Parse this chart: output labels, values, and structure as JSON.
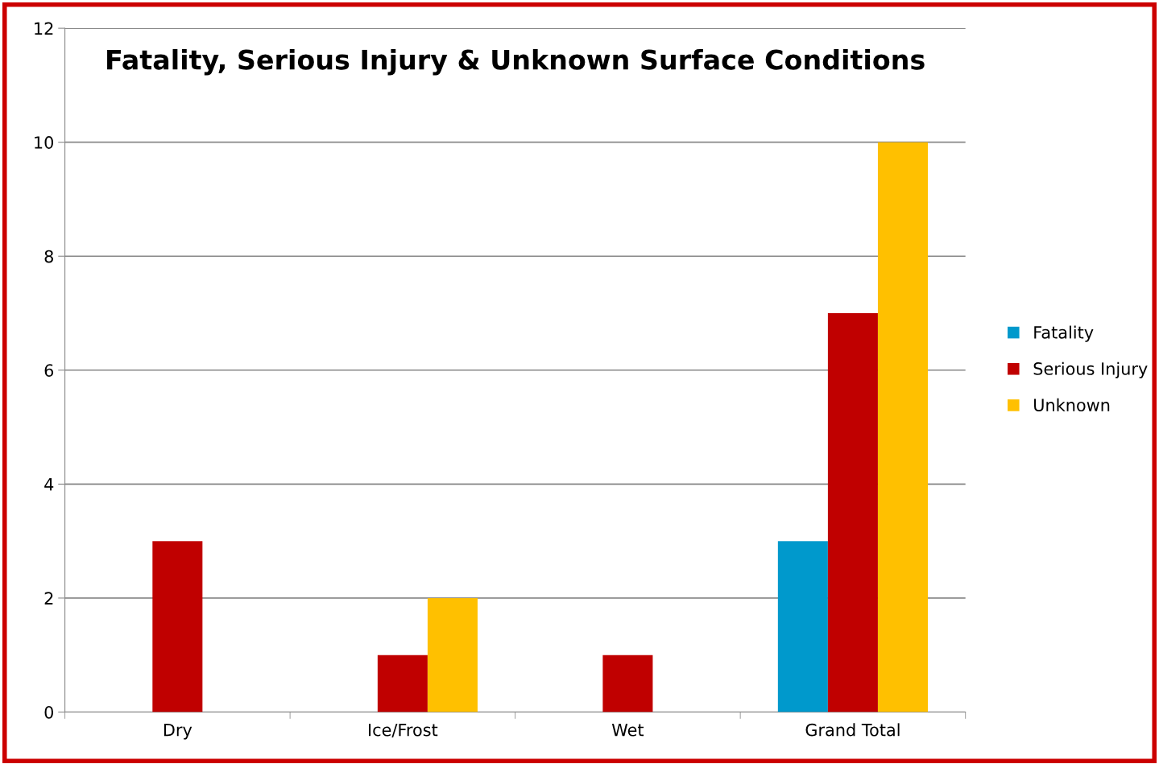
{
  "chart_data": {
    "type": "bar",
    "title": "Fatality, Serious Injury & Unknown Surface Conditions",
    "categories": [
      "Dry",
      "Ice/Frost",
      "Wet",
      "Grand Total"
    ],
    "series": [
      {
        "name": "Fatality",
        "color": "#0099cc",
        "values": [
          null,
          null,
          null,
          3
        ]
      },
      {
        "name": "Serious Injury",
        "color": "#c00000",
        "values": [
          3,
          1,
          1,
          7
        ]
      },
      {
        "name": "Unknown",
        "color": "#ffc000",
        "values": [
          null,
          2,
          null,
          10
        ]
      }
    ],
    "ylim": [
      0,
      12
    ],
    "yticks": [
      0,
      2,
      4,
      6,
      8,
      10,
      12
    ],
    "grid": "y",
    "legend": "right"
  }
}
